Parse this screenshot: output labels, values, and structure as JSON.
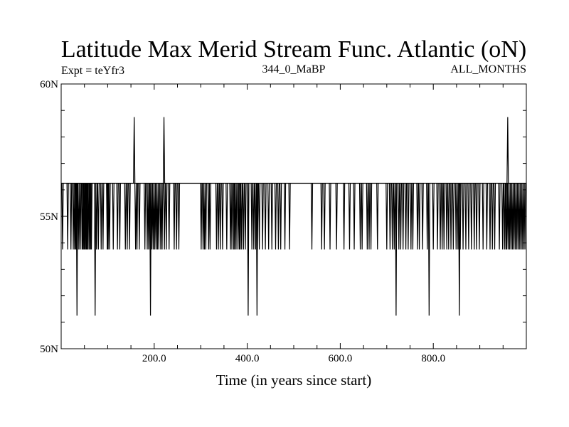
{
  "chart_data": {
    "type": "line",
    "title": "Latitude Max Merid Stream Func. Atlantic (oN)",
    "subtitle_left": "Expt = teYfr3",
    "subtitle_center": "344_0_MaBP",
    "subtitle_right": "ALL_MONTHS",
    "xlabel": "Time (in years since start)",
    "ylabel": "",
    "xlim": [
      0,
      1000
    ],
    "ylim": [
      50,
      60
    ],
    "x_ticks": [
      {
        "value": 200,
        "label": "200.0"
      },
      {
        "value": 400,
        "label": "400.0"
      },
      {
        "value": 600,
        "label": "600.0"
      },
      {
        "value": 800,
        "label": "800.0"
      }
    ],
    "y_ticks": [
      {
        "value": 50,
        "label": "50N"
      },
      {
        "value": 55,
        "label": "55N"
      },
      {
        "value": 60,
        "label": "60N"
      }
    ],
    "baseline": 56.25,
    "levels": {
      "high": 58.75,
      "low1": 53.75,
      "low2": 51.25
    },
    "spikes_high": [
      157,
      221,
      960
    ],
    "spikes_low1": [
      3,
      14,
      21,
      26,
      29,
      31,
      33,
      35,
      38,
      41,
      45,
      47,
      49,
      50,
      52,
      54,
      55,
      56,
      58,
      61,
      62,
      64,
      65,
      76,
      80,
      86,
      90,
      99,
      100,
      101,
      104,
      112,
      121,
      126,
      138,
      142,
      147,
      160,
      163,
      168,
      180,
      185,
      188,
      191,
      195,
      198,
      201,
      204,
      207,
      210,
      214,
      217,
      222,
      226,
      232,
      243,
      248,
      253,
      301,
      305,
      308,
      311,
      317,
      320,
      334,
      338,
      342,
      347,
      356,
      364,
      367,
      371,
      373,
      376,
      380,
      383,
      385,
      388,
      392,
      396,
      402,
      410,
      414,
      418,
      422,
      426,
      433,
      439,
      446,
      453,
      461,
      467,
      472,
      481,
      491,
      539,
      560,
      566,
      578,
      592,
      608,
      620,
      630,
      643,
      647,
      658,
      662,
      666,
      680,
      700,
      707,
      712,
      716,
      720,
      726,
      730,
      735,
      741,
      746,
      752,
      756,
      766,
      770,
      777,
      787,
      800,
      809,
      815,
      819,
      823,
      829,
      833,
      838,
      843,
      849,
      853,
      858,
      864,
      870,
      876,
      882,
      888,
      893,
      899,
      907,
      915,
      922,
      927,
      932,
      942,
      949,
      953,
      956,
      958,
      961,
      964,
      967,
      970,
      973,
      976,
      979,
      982,
      985,
      988,
      991,
      994,
      997
    ],
    "spikes_low2": [
      34,
      73,
      192,
      402,
      421,
      720,
      791,
      856
    ],
    "axis_color": "#000000",
    "line_color": "#000000"
  }
}
